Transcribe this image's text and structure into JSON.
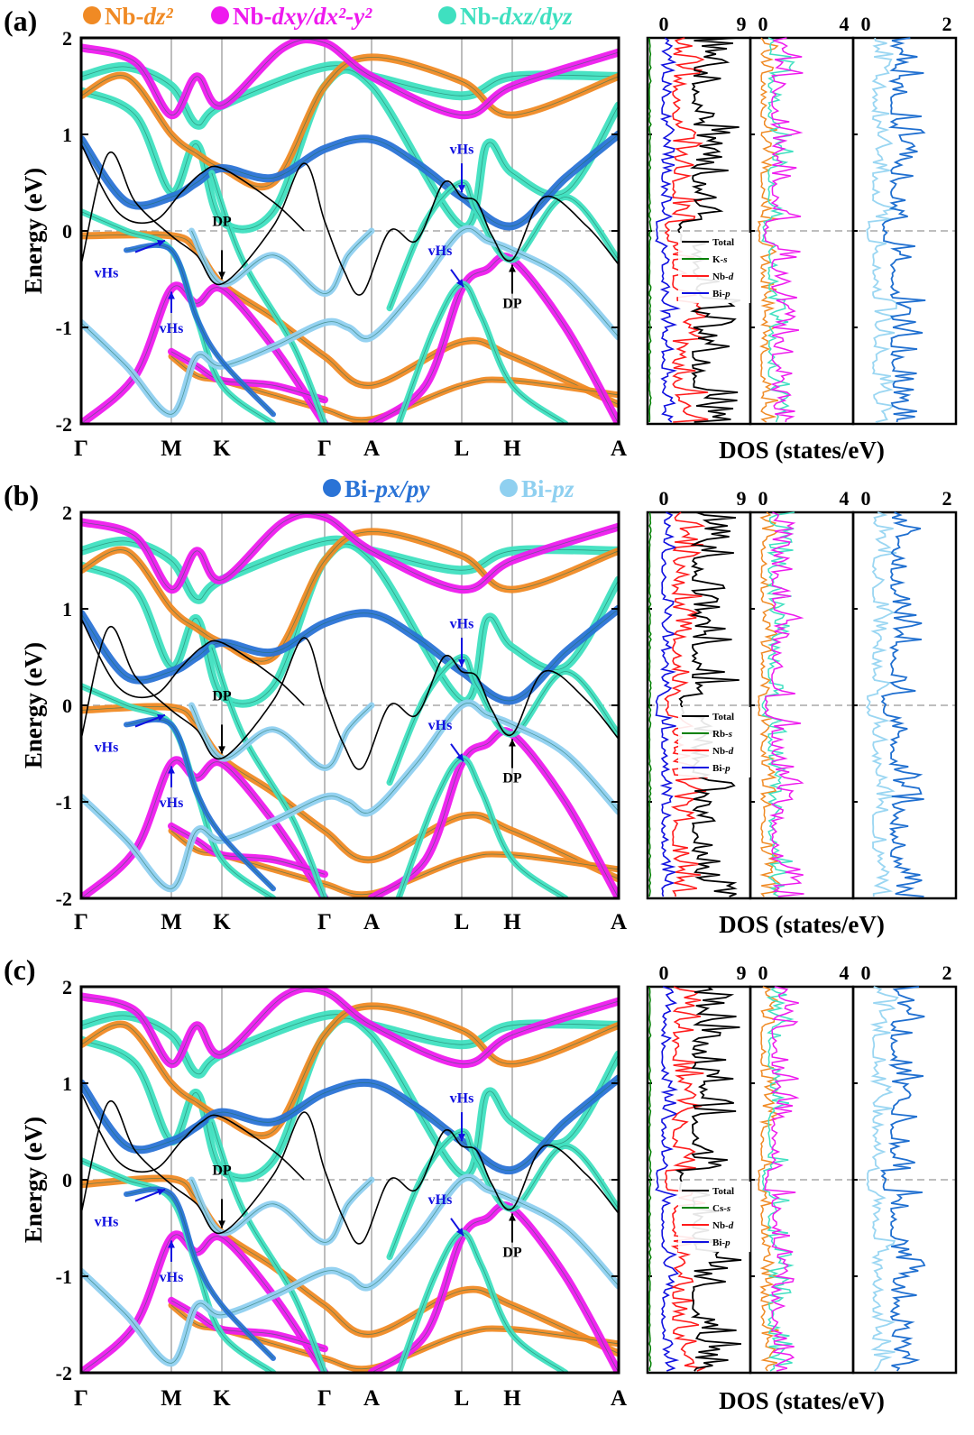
{
  "legend_top": [
    {
      "label": "Nb-",
      "italic": "dz²",
      "color": "#f08a24"
    },
    {
      "label": "Nb-",
      "italic": "dxy/dx²-y²",
      "color": "#ee1aee"
    },
    {
      "label": "Nb-",
      "italic": "dxz/dyz",
      "color": "#3fe0c0"
    }
  ],
  "legend_mid": [
    {
      "label": "Bi-",
      "italic": "px/py",
      "color": "#2a73d6"
    },
    {
      "label": "Bi-",
      "italic": "pz",
      "color": "#8fd0f0"
    }
  ],
  "colors": {
    "dz2": "#f08a24",
    "dxy": "#ee1aee",
    "dxz": "#3fe0c0",
    "bipxy": "#2a73d6",
    "bipz": "#8fd0f0",
    "total": "#000000",
    "alk": "#008000",
    "nbd": "#ff1a1a",
    "bip": "#1010e0",
    "dos_bipxy": "#1f6fd0",
    "dos_bipz": "#9ad6f2"
  },
  "chart_data": [
    {
      "type": "line",
      "panel": "(a)",
      "ylabel": "Energy (eV)",
      "ylim": [
        -2,
        2
      ],
      "yticks": [
        "2",
        "1",
        "0",
        "-1",
        "-2"
      ],
      "kpoints": [
        "Γ",
        "M",
        "K",
        "Γ",
        "A",
        "L",
        "H",
        "A"
      ],
      "annotations": [
        "vHs",
        "vHs",
        "DP",
        "vHs",
        "vHs",
        "DP"
      ],
      "dos": {
        "xlabel": "DOS (states/eV)",
        "top_ticks": [
          [
            "0",
            "9"
          ],
          [
            "0",
            "4"
          ],
          [
            "0",
            "2"
          ]
        ],
        "legend": [
          "Total",
          "K-s",
          "Nb-d",
          "Bi-p"
        ],
        "legend_italic": [
          "",
          "s",
          "d",
          "p"
        ]
      }
    },
    {
      "type": "line",
      "panel": "(b)",
      "ylabel": "Energy (eV)",
      "ylim": [
        -2,
        2
      ],
      "yticks": [
        "2",
        "1",
        "0",
        "-1",
        "-2"
      ],
      "kpoints": [
        "Γ",
        "M",
        "K",
        "Γ",
        "A",
        "L",
        "H",
        "A"
      ],
      "annotations": [
        "vHs",
        "vHs",
        "DP",
        "vHs",
        "vHs",
        "DP"
      ],
      "dos": {
        "xlabel": "DOS (states/eV)",
        "top_ticks": [
          [
            "0",
            "9"
          ],
          [
            "0",
            "4"
          ],
          [
            "0",
            "2"
          ]
        ],
        "legend": [
          "Total",
          "Rb-s",
          "Nb-d",
          "Bi-p"
        ],
        "legend_italic": [
          "",
          "s",
          "d",
          "p"
        ]
      }
    },
    {
      "type": "line",
      "panel": "(c)",
      "ylabel": "Energy (eV)",
      "ylim": [
        -2,
        2
      ],
      "yticks": [
        "2",
        "1",
        "0",
        "-1",
        "-2"
      ],
      "kpoints": [
        "Γ",
        "M",
        "K",
        "Γ",
        "A",
        "L",
        "H",
        "A"
      ],
      "annotations": [
        "vHs",
        "vHs",
        "DP",
        "vHs",
        "vHs",
        "DP"
      ],
      "dos": {
        "xlabel": "DOS (states/eV)",
        "top_ticks": [
          [
            "0",
            "9"
          ],
          [
            "0",
            "4"
          ],
          [
            "0",
            "2"
          ]
        ],
        "legend": [
          "Total",
          "Cs-s",
          "Nb-d",
          "Bi-p"
        ],
        "legend_italic": [
          "",
          "s",
          "d",
          "p"
        ]
      }
    }
  ]
}
